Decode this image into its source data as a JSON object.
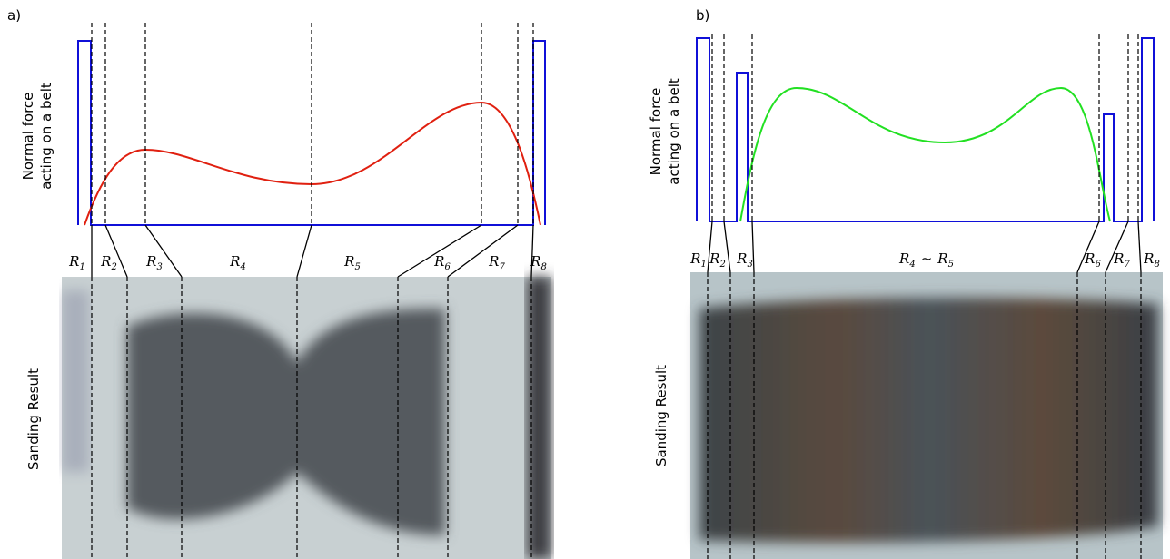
{
  "panels": [
    {
      "label": "a)",
      "y_label": [
        "Normal force",
        "acting on a belt"
      ],
      "image_label": "Sanding Result",
      "regions": [
        {
          "letter": "R",
          "index": "1"
        },
        {
          "letter": "R",
          "index": "2"
        },
        {
          "letter": "R",
          "index": "3"
        },
        {
          "letter": "R",
          "index": "4"
        },
        {
          "letter": "R",
          "index": "5"
        },
        {
          "letter": "R",
          "index": "6"
        },
        {
          "letter": "R",
          "index": "7"
        },
        {
          "letter": "R",
          "index": "8"
        }
      ]
    },
    {
      "label": "b)",
      "y_label": [
        "Normal force",
        "acting on a belt"
      ],
      "image_label": "Sanding Result",
      "regions": [
        {
          "letter": "R",
          "index": "1"
        },
        {
          "letter": "R",
          "index": "2"
        },
        {
          "letter": "R",
          "index": "3"
        },
        {
          "letter": "R",
          "index": "4",
          "sep": "~",
          "to_letter": "R",
          "to_index": "5"
        },
        {
          "letter": "R",
          "index": "6"
        },
        {
          "letter": "R",
          "index": "7"
        },
        {
          "letter": "R",
          "index": "8"
        }
      ]
    }
  ]
}
